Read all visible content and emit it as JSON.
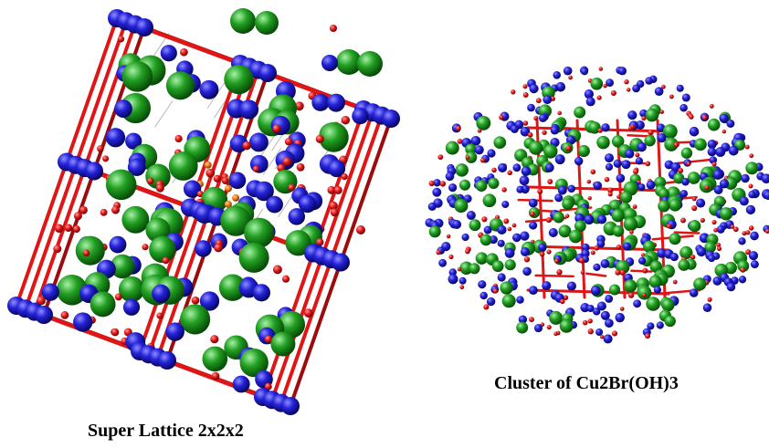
{
  "figures": [
    {
      "caption": "Super Lattice 2x2x2"
    },
    {
      "caption": "Cluster of Cu2Br(OH)3"
    }
  ],
  "colors": {
    "background": "#ffffff",
    "bond": "#e01515",
    "bond_dark": "#9c0c0c",
    "cu_atom": "#1d1bd6",
    "br_atom": "#1c9a1c",
    "o_atom": "#e61c1c",
    "h_atom": "#f07a1a",
    "hbond": "#b8b8b8"
  },
  "icons": {
    "lattice": "crystal-lattice-icon",
    "cluster": "atom-cluster-icon"
  }
}
